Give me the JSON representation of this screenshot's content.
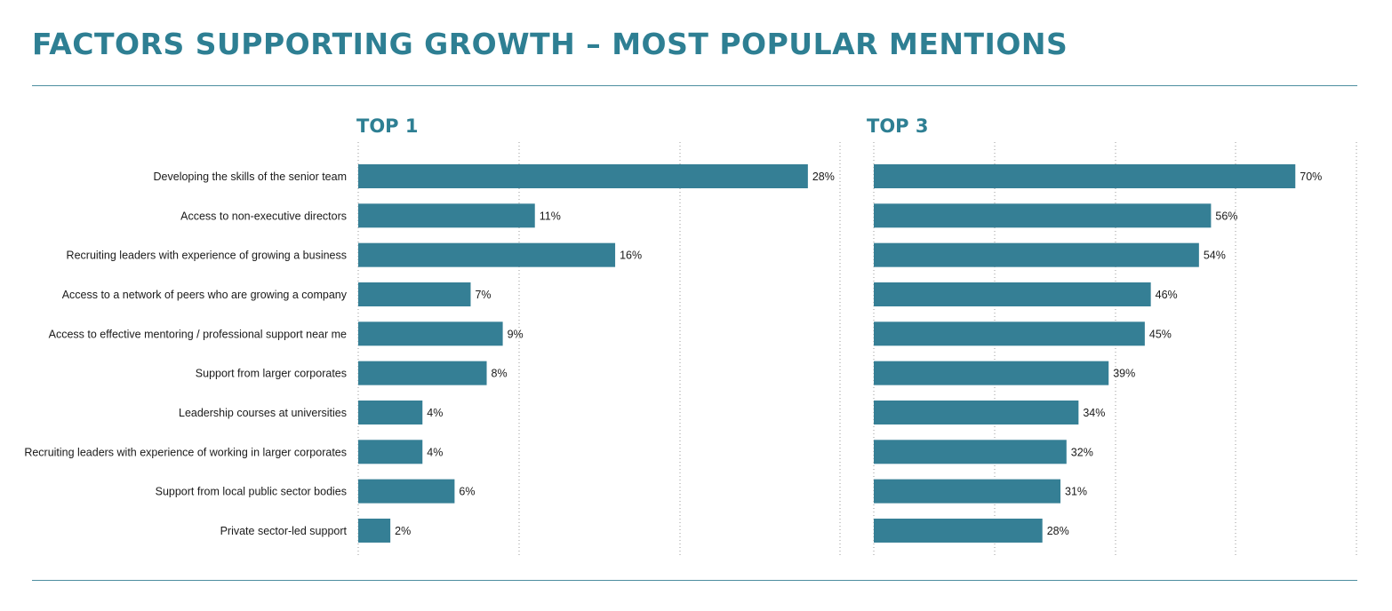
{
  "title": "FACTORS SUPPORTING GROWTH – MOST POPULAR MENTIONS",
  "colors": {
    "bar": "#357f95",
    "title": "#2e7f93",
    "rule": "#4d8ea0"
  },
  "chart_data": [
    {
      "type": "bar",
      "orientation": "horizontal",
      "title": "TOP 1",
      "categories": [
        "Developing the skills of the senior team",
        "Access to non-executive directors",
        "Recruiting leaders with experience of growing a business",
        "Access to a network of peers who are growing a company",
        "Access to effective mentoring / professional support near me",
        "Support from larger corporates",
        "Leadership courses at universities",
        "Recruiting leaders with experience of working in larger corporates",
        "Support from local public sector bodies",
        "Private sector-led support"
      ],
      "values": [
        28,
        11,
        16,
        7,
        9,
        8,
        4,
        4,
        6,
        2
      ],
      "value_labels": [
        "28%",
        "11%",
        "16%",
        "7%",
        "9%",
        "8%",
        "4%",
        "4%",
        "6%",
        "2%"
      ],
      "xlim": [
        0,
        30
      ],
      "grid": true
    },
    {
      "type": "bar",
      "orientation": "horizontal",
      "title": "TOP 3",
      "categories": [
        "Developing the skills of the senior team",
        "Access to non-executive directors",
        "Recruiting leaders with experience of growing a business",
        "Access to a network of peers who are growing a company",
        "Access to effective mentoring / professional support near me",
        "Support from larger corporates",
        "Leadership courses at universities",
        "Recruiting leaders with experience of working in larger corporates",
        "Support from local public sector bodies",
        "Private sector-led support"
      ],
      "values": [
        70,
        56,
        54,
        46,
        45,
        39,
        34,
        32,
        31,
        28
      ],
      "value_labels": [
        "70%",
        "56%",
        "54%",
        "46%",
        "45%",
        "39%",
        "34%",
        "32%",
        "31%",
        "28%"
      ],
      "xlim": [
        0,
        80
      ],
      "grid": true
    }
  ]
}
